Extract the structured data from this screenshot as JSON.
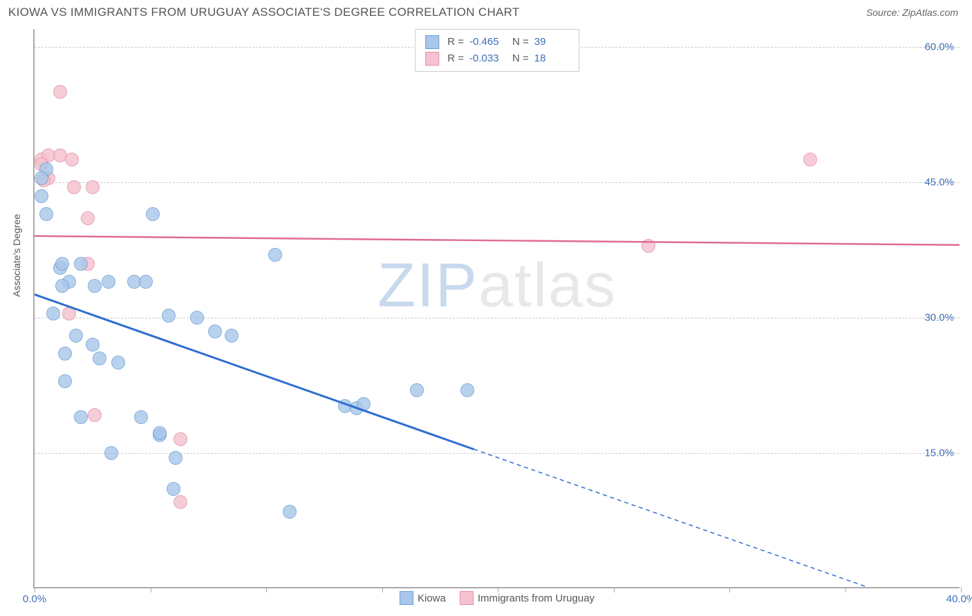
{
  "header": {
    "title": "KIOWA VS IMMIGRANTS FROM URUGUAY ASSOCIATE'S DEGREE CORRELATION CHART",
    "source": "Source: ZipAtlas.com"
  },
  "chart": {
    "type": "scatter",
    "y_axis_label": "Associate's Degree",
    "watermark": {
      "part1": "ZIP",
      "part2": "atlas"
    },
    "colors": {
      "series1_fill": "#a9c7ea",
      "series1_stroke": "#6d9fd6",
      "series2_fill": "#f5c2cf",
      "series2_stroke": "#e48faa",
      "grid": "#cccccc",
      "axis": "#aaaaaa",
      "tick_text": "#3b6fb6",
      "trend1": "#2f6dd0",
      "trend2": "#e06a92"
    },
    "point_radius": 10,
    "x_range": [
      0,
      40
    ],
    "y_range": [
      0,
      62
    ],
    "y_gridlines": [
      15,
      30,
      45,
      60
    ],
    "y_tick_labels": [
      "15.0%",
      "30.0%",
      "45.0%",
      "60.0%"
    ],
    "x_ticks": [
      0,
      5,
      10,
      15,
      20,
      25,
      30,
      35,
      40
    ],
    "x_tick_labels": {
      "0": "0.0%",
      "40": "40.0%"
    },
    "legend_top": [
      {
        "swatch_fill": "#a9c7ea",
        "swatch_stroke": "#6d9fd6",
        "r_label": "R =",
        "r_val": "-0.465",
        "n_label": "N =",
        "n_val": "39"
      },
      {
        "swatch_fill": "#f5c2cf",
        "swatch_stroke": "#e48faa",
        "r_label": "R =",
        "r_val": "-0.033",
        "n_label": "N =",
        "n_val": "18"
      }
    ],
    "legend_bottom": [
      {
        "swatch_fill": "#a9c7ea",
        "swatch_stroke": "#6d9fd6",
        "label": "Kiowa"
      },
      {
        "swatch_fill": "#f5c2cf",
        "swatch_stroke": "#e48faa",
        "label": "Immigrants from Uruguay"
      }
    ],
    "trend_lines": {
      "series1": {
        "x1": 0,
        "y1": 32.5,
        "x2_solid": 19,
        "y2_solid": 15.3,
        "x2_dash": 36,
        "y2_dash": 0,
        "stroke_width": 3
      },
      "series2": {
        "x1": 0,
        "y1": 39,
        "x2": 40,
        "y2": 38,
        "stroke_width": 2.5
      }
    },
    "series1_points": [
      [
        0.3,
        43.5
      ],
      [
        0.5,
        41.5
      ],
      [
        1.1,
        35.5
      ],
      [
        1.2,
        36
      ],
      [
        1.5,
        34
      ],
      [
        1.2,
        33.5
      ],
      [
        2.0,
        36
      ],
      [
        2.6,
        33.5
      ],
      [
        3.2,
        34
      ],
      [
        4.3,
        34
      ],
      [
        0.8,
        30.5
      ],
      [
        1.8,
        28
      ],
      [
        2.5,
        27
      ],
      [
        1.3,
        26
      ],
      [
        2.8,
        25.5
      ],
      [
        3.6,
        25
      ],
      [
        1.3,
        23
      ],
      [
        2.0,
        19
      ],
      [
        4.6,
        19
      ],
      [
        3.3,
        15
      ],
      [
        5.4,
        17
      ],
      [
        5.1,
        41.5
      ],
      [
        5.8,
        30.2
      ],
      [
        7.0,
        30
      ],
      [
        4.8,
        34
      ],
      [
        7.8,
        28.5
      ],
      [
        10.4,
        37
      ],
      [
        6.0,
        11
      ],
      [
        6.1,
        14.5
      ],
      [
        5.4,
        17.2
      ],
      [
        11.0,
        8.5
      ],
      [
        13.4,
        20.2
      ],
      [
        13.9,
        20
      ],
      [
        14.2,
        20.4
      ],
      [
        16.5,
        22
      ],
      [
        18.7,
        22
      ],
      [
        8.5,
        28
      ],
      [
        0.5,
        46.5
      ],
      [
        0.3,
        45.5
      ]
    ],
    "series2_points": [
      [
        0.3,
        47.5
      ],
      [
        0.6,
        48
      ],
      [
        1.1,
        55
      ],
      [
        1.1,
        48
      ],
      [
        1.6,
        47.5
      ],
      [
        0.6,
        45.5
      ],
      [
        0.4,
        45.2
      ],
      [
        1.7,
        44.5
      ],
      [
        2.5,
        44.5
      ],
      [
        2.3,
        41
      ],
      [
        2.3,
        36
      ],
      [
        1.5,
        30.5
      ],
      [
        2.6,
        19.2
      ],
      [
        6.3,
        16.5
      ],
      [
        6.3,
        9.6
      ],
      [
        26.5,
        38
      ],
      [
        33.5,
        47.5
      ],
      [
        0.3,
        47
      ]
    ]
  }
}
